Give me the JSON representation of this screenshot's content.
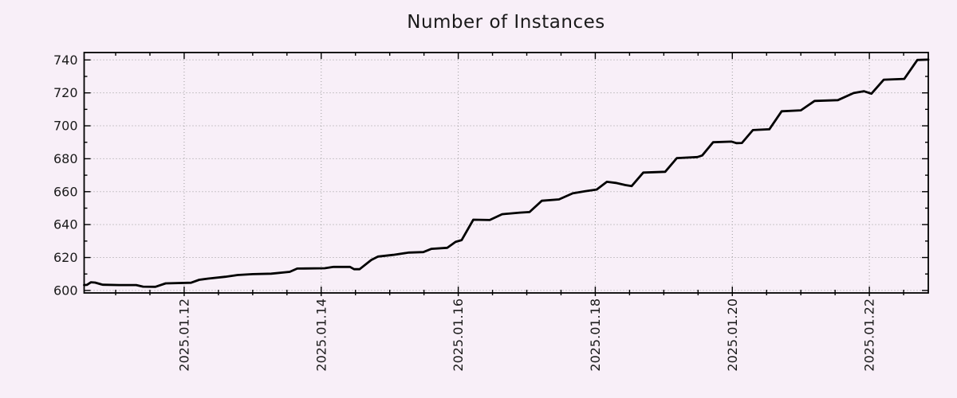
{
  "colors": {
    "background": "#f8eff8",
    "plot_line": "#000000",
    "grid": "#9b9b9b",
    "axis": "#000000",
    "text": "#1a1a1a"
  },
  "chart_data": {
    "type": "line",
    "title": "Number of Instances",
    "xlabel": "",
    "ylabel": "",
    "x_unit": "day of January 2025",
    "xlim": [
      10.54,
      22.86
    ],
    "ylim": [
      598.5,
      744.5
    ],
    "x_major_ticks": [
      {
        "value": 12,
        "label": "2025.01.12"
      },
      {
        "value": 14,
        "label": "2025.01.14"
      },
      {
        "value": 16,
        "label": "2025.01.16"
      },
      {
        "value": 18,
        "label": "2025.01.18"
      },
      {
        "value": 20,
        "label": "2025.01.20"
      },
      {
        "value": 22,
        "label": "2025.01.22"
      }
    ],
    "x_minor_step": 0.5,
    "y_major_ticks": [
      600,
      620,
      640,
      660,
      680,
      700,
      720,
      740
    ],
    "y_minor_step": 10,
    "grid": "dotted gridlines at major ticks, ticks inside and mirrored on all four borders",
    "legend": "none",
    "x_tick_label_rotation": -90,
    "series": [
      {
        "name": "Number of Instances",
        "color": "#000000",
        "points": [
          [
            10.54,
            603.3
          ],
          [
            10.58,
            603.4
          ],
          [
            10.64,
            605.0
          ],
          [
            10.7,
            604.8
          ],
          [
            10.81,
            603.5
          ],
          [
            11.05,
            603.3
          ],
          [
            11.3,
            603.3
          ],
          [
            11.4,
            602.3
          ],
          [
            11.58,
            602.2
          ],
          [
            11.73,
            604.3
          ],
          [
            12.1,
            604.7
          ],
          [
            12.22,
            606.5
          ],
          [
            12.35,
            607.2
          ],
          [
            12.6,
            608.3
          ],
          [
            12.78,
            609.4
          ],
          [
            13.0,
            609.9
          ],
          [
            13.27,
            610.2
          ],
          [
            13.54,
            611.3
          ],
          [
            13.65,
            613.3
          ],
          [
            14.05,
            613.5
          ],
          [
            14.18,
            614.3
          ],
          [
            14.42,
            614.3
          ],
          [
            14.48,
            612.9
          ],
          [
            14.56,
            612.9
          ],
          [
            14.73,
            618.5
          ],
          [
            14.83,
            620.6
          ],
          [
            15.05,
            621.6
          ],
          [
            15.28,
            623.0
          ],
          [
            15.49,
            623.3
          ],
          [
            15.61,
            625.3
          ],
          [
            15.84,
            625.9
          ],
          [
            15.96,
            629.5
          ],
          [
            16.05,
            630.6
          ],
          [
            16.22,
            643.0
          ],
          [
            16.46,
            642.8
          ],
          [
            16.64,
            646.3
          ],
          [
            16.9,
            647.3
          ],
          [
            17.04,
            647.6
          ],
          [
            17.22,
            654.5
          ],
          [
            17.47,
            655.3
          ],
          [
            17.67,
            659.0
          ],
          [
            17.85,
            660.3
          ],
          [
            18.02,
            661.3
          ],
          [
            18.17,
            666.0
          ],
          [
            18.3,
            665.3
          ],
          [
            18.44,
            664.0
          ],
          [
            18.53,
            663.4
          ],
          [
            18.7,
            671.6
          ],
          [
            19.02,
            672.1
          ],
          [
            19.19,
            680.4
          ],
          [
            19.49,
            681.0
          ],
          [
            19.56,
            682.0
          ],
          [
            19.72,
            690.0
          ],
          [
            19.99,
            690.4
          ],
          [
            20.06,
            689.5
          ],
          [
            20.14,
            689.6
          ],
          [
            20.3,
            697.4
          ],
          [
            20.54,
            697.9
          ],
          [
            20.72,
            708.8
          ],
          [
            21.0,
            709.4
          ],
          [
            21.2,
            715.1
          ],
          [
            21.54,
            715.6
          ],
          [
            21.77,
            719.9
          ],
          [
            21.92,
            721.0
          ],
          [
            22.03,
            719.5
          ],
          [
            22.21,
            728.0
          ],
          [
            22.51,
            728.5
          ],
          [
            22.7,
            740.0
          ],
          [
            22.86,
            740.2
          ]
        ]
      }
    ]
  }
}
